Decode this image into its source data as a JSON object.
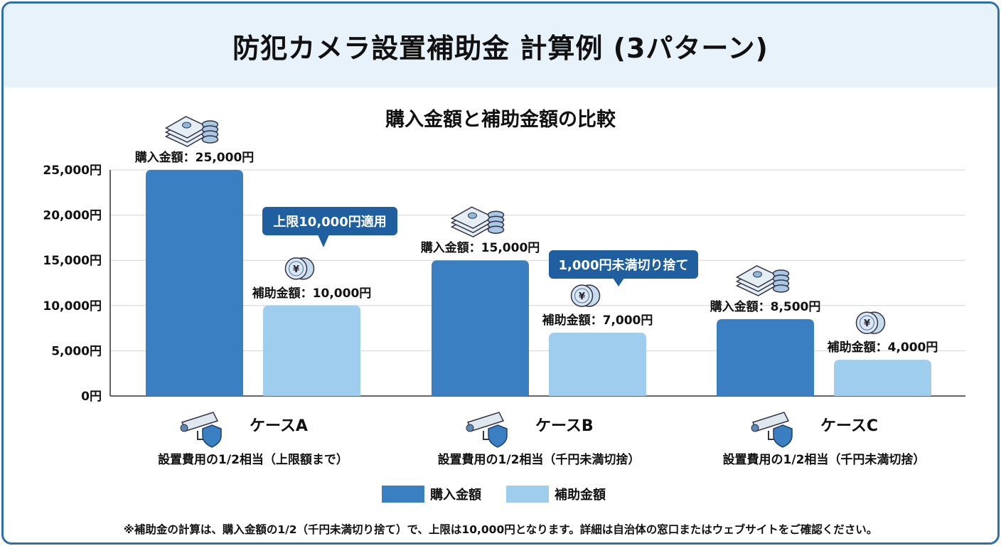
{
  "title": "防犯カメラ設置補助金 計算例 (3パターン)",
  "chart_data": {
    "type": "bar",
    "title": "購入金額と補助金額の比較",
    "categories": [
      "ケースA",
      "ケースB",
      "ケースC"
    ],
    "category_descriptions": [
      "設置費用の1/2相当（上限額まで）",
      "設置費用の1/2相当（千円未満切捨）",
      "設置費用の1/2相当（千円未満切捨）"
    ],
    "series": [
      {
        "name": "購入金額",
        "values": [
          25000,
          15000,
          8500
        ],
        "color": "#3a7fc1",
        "labels": [
          "購入金額：25,000円",
          "購入金額：15,000円",
          "購入金額：8,500円"
        ]
      },
      {
        "name": "補助金額",
        "values": [
          10000,
          7000,
          4000
        ],
        "color": "#9fcdee",
        "labels": [
          "補助金額：10,000円",
          "補助金額：7,000円",
          "補助金額：4,000円"
        ]
      }
    ],
    "yticks": [
      "0円",
      "5,000円",
      "10,000円",
      "15,000円",
      "20,000円",
      "25,000円"
    ],
    "ylim": [
      0,
      25000
    ],
    "grid": true,
    "legend": "bottom",
    "annotations": [
      "上限10,000円適用",
      "1,000円未満切り捨て",
      ""
    ],
    "icons": {
      "purchase": "money-stack-icon",
      "subsidy": "yen-coin-icon",
      "case": "security-camera-shield-icon"
    }
  },
  "footnote": "※補助金の計算は、購入金額の1/2（千円未満切り捨て）で、上限は10,000円となります。詳細は自治体の窓口またはウェブサイトをご確認ください。",
  "colors": {
    "frame": "#2f6fad",
    "header_bg": "#e8f2fa",
    "callout": "#1f5fa0"
  }
}
